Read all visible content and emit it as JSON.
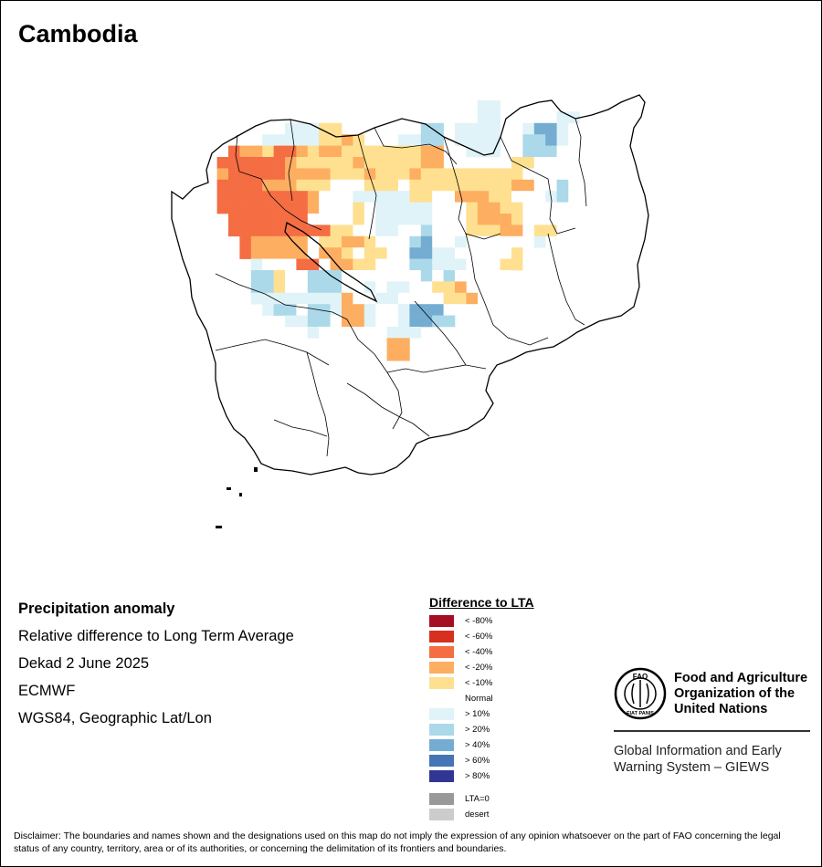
{
  "map_title": "Cambodia",
  "info": {
    "line1": "Precipitation anomaly",
    "line2": "Relative difference to Long Term Average",
    "line3": "Dekad 2 June 2025",
    "line4": "ECMWF",
    "line5": "WGS84, Geographic Lat/Lon"
  },
  "legend": {
    "title": "Difference to LTA",
    "items": [
      {
        "label": "< -80%",
        "color": "#a50f26"
      },
      {
        "label": "< -60%",
        "color": "#d7301f"
      },
      {
        "label": "< -40%",
        "color": "#f46d43"
      },
      {
        "label": "< -20%",
        "color": "#fdae61"
      },
      {
        "label": "< -10%",
        "color": "#fee090"
      },
      {
        "label": "Normal",
        "color": "#ffffff"
      },
      {
        "label": "> 10%",
        "color": "#e0f3f8"
      },
      {
        "label": "> 20%",
        "color": "#abd9e9"
      },
      {
        "label": "> 40%",
        "color": "#74add1"
      },
      {
        "label": "> 60%",
        "color": "#4575b4"
      },
      {
        "label": "> 80%",
        "color": "#313695"
      }
    ],
    "extra": [
      {
        "label": "LTA=0",
        "color": "#999999"
      },
      {
        "label": "desert",
        "color": "#cccccc"
      }
    ]
  },
  "org": {
    "name_line1": "Food and Agriculture",
    "name_line2": "Organization of the",
    "name_line3": "United Nations",
    "logo_text": "FAO",
    "logo_motto": "FIAT PANIS",
    "system_line1": "Global Information and Early",
    "system_line2": "Warning System – GIEWS"
  },
  "disclaimer": "Disclaimer: The boundaries and names shown and the designations used on this map do not imply the expression of any opinion whatsoever on the part of FAO concerning the legal status of any country, territory, area or of its authorities, or concerning the delimitation of its frontiers and boundaries.",
  "palette": {
    "A": "#f46d43",
    "O": "#fdae61",
    "Y": "#fee090",
    "W": "#ffffff",
    "L": "#e0f3f8",
    "B": "#abd9e9",
    "M": "#74add1"
  },
  "grid": [
    "...........................LL......",
    "...........................LL.....LL",
    "..........LLLYY.......BB.LLLL..LMML",
    "........LLLLLYYOY...LLBB.LLLL..BBML",
    ".....AOOYAAOYOOYYYYYYYOO..LLL..BBBW",
    "....AAAAAAOYYYYYOYYYYYOO......YYWWW",
    "....OAAAAAOOOOYYYOYYYOYYYYYYYYYWWWW",
    "....AAAAOOOYYYWWWYYYWYYYYYYYYYOOWWB",
    "....AAAAAAAAOWWWLLLLLYYWWOOOYYWWWLB",
    "....AAAAAAAAOWWWYWLLLLLWWWYOOYYWWWW",
    ".....AAAAAAAWWWWYWLLLLLWWWYOOOYWWWW",
    ".....AAAAAAAAAYYWWLLWWBWWWYYYOOWYYW",
    "......AOOOOOWYYOOYWWWBMWWLWWWWWWL..",
    "......AOOOOOWOOYWYYWWMMLLWWWWWYW...",
    ".......LWWWAAWOOYYWWWBBLLLWWWYYW...",
    ".......BBYWWBBBWWWWWWWBWBWWWWW.....",
    ".......BBYWWBBBWWLWLLWWYYO........",
    ".......LLLLLLLLOWWLLWWWWYYO........",
    "........LBBWBBLOOLWWLMMMWWW........",
    "..........LLBBWOOLWWLMMBB..........",
    "............LWWWWWWLLL.............",
    "...................OO..............",
    "...................OO.............."
  ]
}
